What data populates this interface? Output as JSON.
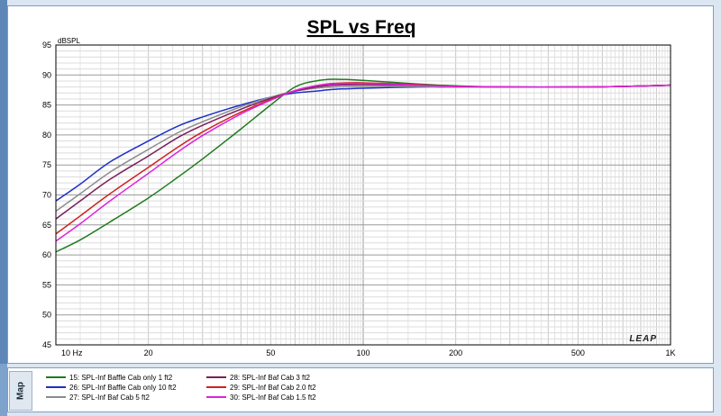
{
  "chart_data": {
    "type": "line",
    "title": "SPL vs Freq",
    "ylabel": "dBSPL",
    "xlabel": "",
    "xscale": "log",
    "xlim": [
      10,
      1000
    ],
    "ylim": [
      45,
      95
    ],
    "y_ticks": [
      45,
      50,
      55,
      60,
      65,
      70,
      75,
      80,
      85,
      90,
      95
    ],
    "y_tick_labels": [
      "45",
      "50",
      "55",
      "60",
      "65",
      "70",
      "75",
      "80",
      "85",
      "90",
      "95"
    ],
    "x_ticks": [
      10,
      20,
      50,
      100,
      200,
      500,
      1000
    ],
    "x_tick_labels": [
      "10  Hz",
      "20",
      "50",
      "100",
      "200",
      "500",
      "1K"
    ],
    "grid": true,
    "watermark": "LEAP",
    "legend_position": "bottom",
    "series": [
      {
        "name": "15: SPL-Inf Baffle Cab only 1 ft2",
        "color": "#1f7a1f",
        "x": [
          10,
          12,
          15,
          20,
          25,
          30,
          40,
          50,
          60,
          70,
          80,
          100,
          150,
          200,
          300,
          500,
          700,
          1000
        ],
        "y": [
          60.5,
          62.5,
          65.5,
          69.5,
          73,
          76,
          81,
          85,
          88,
          89,
          89.3,
          89.1,
          88.5,
          88.2,
          88,
          88,
          88.1,
          88.3
        ]
      },
      {
        "name": "26: SPL-Inf Baffle Cab only 10 ft2",
        "color": "#1f2fc8",
        "x": [
          10,
          12,
          15,
          20,
          25,
          30,
          40,
          50,
          60,
          70,
          80,
          100,
          150,
          200,
          300,
          500,
          700,
          1000
        ],
        "y": [
          69,
          71.8,
          75.5,
          79,
          81.5,
          83,
          85,
          86.3,
          87,
          87.3,
          87.6,
          87.8,
          88,
          88,
          88,
          88,
          88.1,
          88.3
        ]
      },
      {
        "name": "27: SPL-Inf Baf Cab 5 ft2",
        "color": "#8c8c8c",
        "x": [
          10,
          12,
          15,
          20,
          25,
          30,
          40,
          50,
          60,
          70,
          80,
          100,
          150,
          200,
          300,
          500,
          700,
          1000
        ],
        "y": [
          67.3,
          70.2,
          73.8,
          77.6,
          80.4,
          82.2,
          84.7,
          86.3,
          87.3,
          87.8,
          88,
          88.1,
          88.1,
          88,
          88,
          88,
          88.1,
          88.3
        ]
      },
      {
        "name": "28: SPL-Inf Baf Cab 3 ft2",
        "color": "#7a1f5c",
        "x": [
          10,
          12,
          15,
          20,
          25,
          30,
          40,
          50,
          60,
          70,
          80,
          100,
          150,
          200,
          300,
          500,
          700,
          1000
        ],
        "y": [
          66,
          69,
          72.6,
          76.5,
          79.6,
          81.6,
          84.3,
          86.1,
          87.3,
          88,
          88.3,
          88.4,
          88.3,
          88.1,
          88,
          88,
          88.1,
          88.3
        ]
      },
      {
        "name": "29: SPL-Inf Baf Cab 2.0 ft2",
        "color": "#d02020",
        "x": [
          10,
          12,
          15,
          20,
          25,
          30,
          40,
          50,
          60,
          70,
          80,
          100,
          150,
          200,
          300,
          500,
          700,
          1000
        ],
        "y": [
          63.5,
          66.5,
          70.2,
          74.6,
          78,
          80.5,
          83.8,
          85.9,
          87.4,
          88.2,
          88.6,
          88.7,
          88.4,
          88.1,
          88,
          88,
          88.1,
          88.3
        ]
      },
      {
        "name": "30: SPL-Inf Baf Cab 1.5 ft2",
        "color": "#e020e0",
        "x": [
          10,
          12,
          15,
          20,
          25,
          30,
          40,
          50,
          60,
          70,
          80,
          100,
          150,
          200,
          300,
          500,
          700,
          1000
        ],
        "y": [
          62.3,
          65.2,
          69,
          73.6,
          77.2,
          79.9,
          83.5,
          85.8,
          87.4,
          88.2,
          88.5,
          88.6,
          88.3,
          88.1,
          88,
          88,
          88.1,
          88.3
        ]
      }
    ]
  },
  "legend_panel": {
    "tab_label": "Map"
  }
}
